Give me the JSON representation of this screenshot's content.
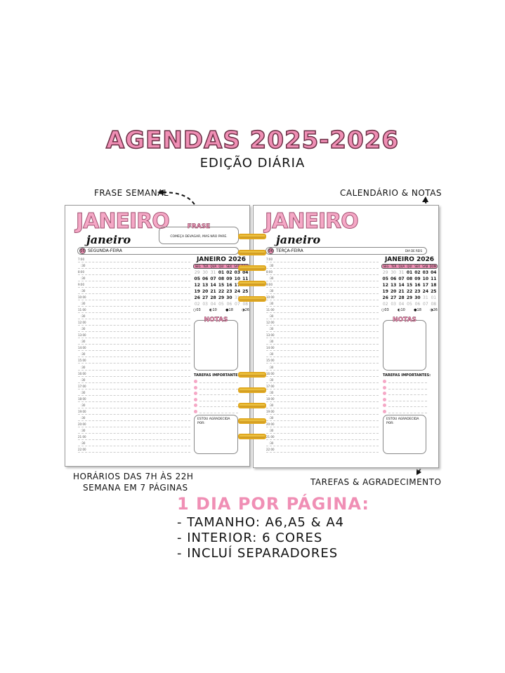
{
  "header": {
    "title": "AGENDAS 2025-2026",
    "subtitle": "EDIÇÃO DIÁRIA"
  },
  "callouts": {
    "weekly_phrase": "FRASE SEMANAL",
    "calendar_notes": "CALENDÁRIO & NOTAS",
    "hours": "HORÁRIOS DAS 7H ÀS 22H",
    "week": "SEMANA EM 7 PÁGINAS",
    "tasks": "TAREFAS & AGRADECIMENTO"
  },
  "pages": [
    {
      "month": "JANEIRO",
      "month_script": "janeiro",
      "day_num": "05",
      "weekday": "SEGUNDA-FEIRA",
      "holiday": "",
      "phrase_title": "FRASE",
      "phrase_script": "frase",
      "phrase": "COMEÇA DEVAGAR, MAS NÃO PARE."
    },
    {
      "month": "JANEIRO",
      "month_script": "janeiro",
      "day_num": "06",
      "weekday": "TERÇA-FEIRA",
      "holiday": "DIA DE REIS"
    }
  ],
  "hours": [
    "7:00",
    ":30",
    "8:00",
    ":30",
    "9:00",
    ":30",
    "10:00",
    ":30",
    "11:00",
    ":30",
    "12:00",
    ":30",
    "13:00",
    ":30",
    "14:00",
    ":30",
    "15:00",
    ":30",
    "16:00",
    ":30",
    "17:00",
    ":30",
    "18:00",
    ":30",
    "19:00",
    ":30",
    "20:00",
    ":30",
    "21:00",
    ":30",
    "22:00"
  ],
  "calendar": {
    "title": "JANEIRO 2026",
    "weekdays": [
      "SEG",
      "TER",
      "QUA",
      "QUI",
      "SEX",
      "SÁB",
      "DOM"
    ],
    "days": [
      "29",
      "30",
      "31",
      "01",
      "02",
      "03",
      "04",
      "05",
      "06",
      "07",
      "08",
      "09",
      "10",
      "11",
      "12",
      "13",
      "14",
      "15",
      "16",
      "17",
      "18",
      "19",
      "20",
      "21",
      "22",
      "23",
      "24",
      "25",
      "26",
      "27",
      "28",
      "29",
      "30",
      "31",
      "01",
      "02",
      "03",
      "04",
      "05",
      "06",
      "07",
      "08"
    ],
    "moons": [
      "○03",
      "◐10",
      "●18",
      "◑26"
    ]
  },
  "notes_title": "NOTAS",
  "notes_script": "notas",
  "tasks_title": "TAREFAS IMPORTANTES:",
  "grateful_title": "ESTOU AGRADECIDA POR:",
  "footer": {
    "headline": "1 DIA POR PÁGINA:",
    "features": [
      "- TAMANHO: A6,A5 & A4",
      "- INTERIOR: 6 CORES",
      "- INCLUÍ SEPARADORES"
    ]
  },
  "colors": {
    "accent": "#f08fb5",
    "ring": "#e0a820"
  }
}
